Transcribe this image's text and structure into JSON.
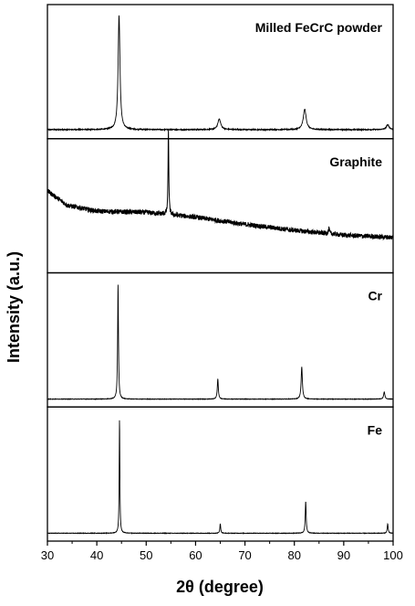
{
  "chart_data": {
    "type": "line",
    "stacked_panels": true,
    "xlabel": "2θ (degree)",
    "ylabel": "Intensity (a.u.)",
    "xlim": [
      30,
      100
    ],
    "xticks": [
      30,
      40,
      50,
      60,
      70,
      80,
      90,
      100
    ],
    "y_tick_labels": false,
    "grid": false,
    "legend": "none",
    "series": [
      {
        "name": "Milled FeCrC powder",
        "baseline": 0.03,
        "noise": 0.004,
        "background": [],
        "peaks": [
          {
            "x": 44.5,
            "height": 0.96,
            "width": 0.45
          },
          {
            "x": 64.8,
            "height": 0.09,
            "width": 0.7
          },
          {
            "x": 82.1,
            "height": 0.17,
            "width": 0.7
          },
          {
            "x": 98.9,
            "height": 0.04,
            "width": 0.7
          }
        ]
      },
      {
        "name": "Graphite",
        "baseline": 0.12,
        "noise": 0.02,
        "background": [
          [
            30,
            0.52
          ],
          [
            34,
            0.4
          ],
          [
            40,
            0.35
          ],
          [
            50,
            0.34
          ],
          [
            60,
            0.3
          ],
          [
            70,
            0.24
          ],
          [
            80,
            0.19
          ],
          [
            90,
            0.15
          ],
          [
            100,
            0.13
          ]
        ],
        "peaks": [
          {
            "x": 54.5,
            "height": 0.7,
            "width": 0.18
          },
          {
            "x": 87.0,
            "height": 0.04,
            "width": 0.3
          }
        ]
      },
      {
        "name": "Cr",
        "baseline": 0.02,
        "noise": 0.002,
        "background": [],
        "peaks": [
          {
            "x": 44.3,
            "height": 0.96,
            "width": 0.2
          },
          {
            "x": 64.5,
            "height": 0.17,
            "width": 0.25
          },
          {
            "x": 81.5,
            "height": 0.27,
            "width": 0.3
          },
          {
            "x": 98.2,
            "height": 0.06,
            "width": 0.3
          }
        ]
      },
      {
        "name": "Fe",
        "baseline": 0.02,
        "noise": 0.002,
        "background": [],
        "peaks": [
          {
            "x": 44.6,
            "height": 0.96,
            "width": 0.16
          },
          {
            "x": 65.0,
            "height": 0.08,
            "width": 0.2
          },
          {
            "x": 82.3,
            "height": 0.27,
            "width": 0.22
          },
          {
            "x": 98.9,
            "height": 0.08,
            "width": 0.22
          }
        ]
      }
    ]
  }
}
